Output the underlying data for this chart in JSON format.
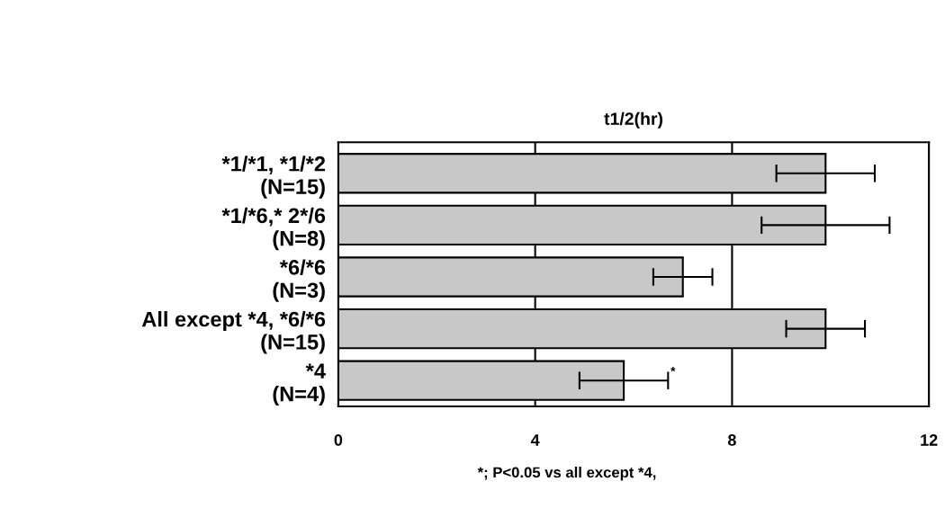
{
  "chart_data": {
    "type": "bar",
    "orientation": "horizontal",
    "title": "t1/2(hr)",
    "categories": [
      "*1/*1, *1/*2\n(N=15)",
      "*1/*6,* 2*/6\n(N=8)",
      "*6/*6\n(N=3)",
      "All except *4, *6/*6\n(N=15)",
      "*4\n(N=4)"
    ],
    "values": [
      9.9,
      9.9,
      7.0,
      9.9,
      5.8
    ],
    "errors": [
      1.0,
      1.3,
      0.6,
      0.8,
      0.9
    ],
    "color": "#c8c8c8",
    "xlim": [
      0,
      12
    ],
    "xticks": [
      0,
      4,
      8,
      12
    ],
    "grid": "x",
    "annotations": [
      {
        "text": "*",
        "x": 6.7,
        "y": "*4\n(N=4)"
      },
      "*; P<0.05 vs all except *4,"
    ]
  }
}
